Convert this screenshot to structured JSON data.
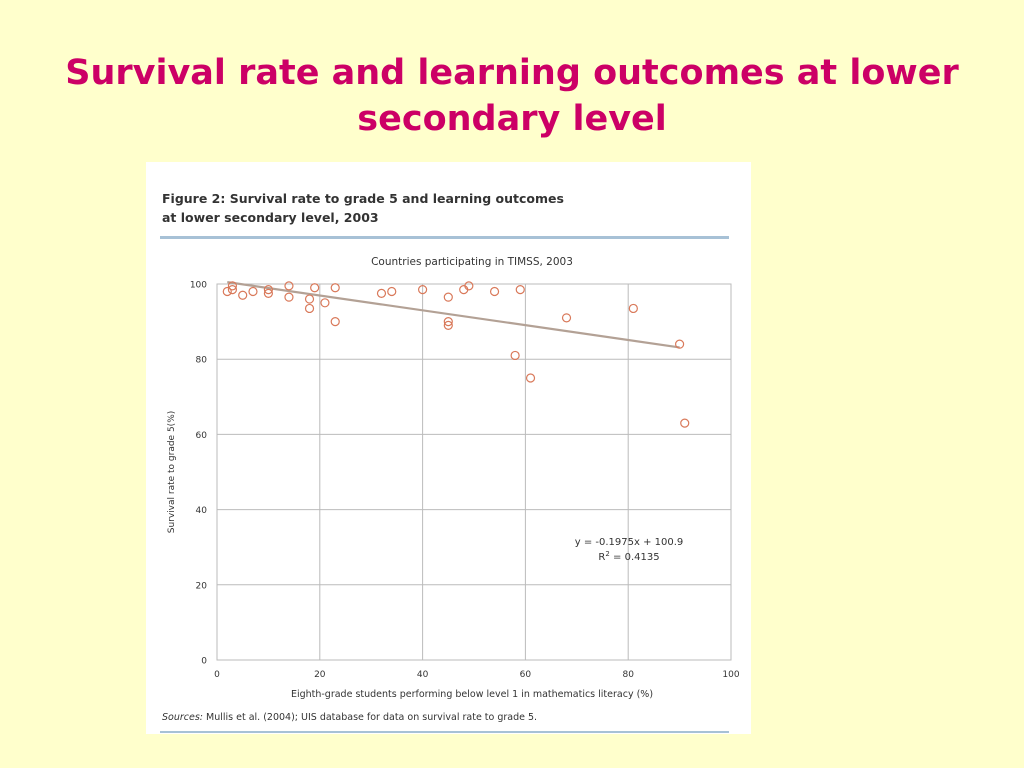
{
  "slide": {
    "title": "Survival rate and learning outcomes at lower secondary level"
  },
  "figure": {
    "caption_line1": "Figure 2: Survival rate to grade 5 and learning outcomes",
    "caption_line2": "at lower secondary level, 2003",
    "sources_label": "Sources:",
    "sources_text": " Mullis et al. (2004); UIS database for data on survival rate to grade 5."
  },
  "colors": {
    "title": "#cc0066",
    "background": "#ffffcc",
    "marker": "#d9795a",
    "trendline": "#b3a195",
    "grid": "#bbbbbb",
    "rule": "#a7c1d6"
  },
  "chart_data": {
    "type": "scatter",
    "title": "Countries participating in TIMSS, 2003",
    "xlabel": "Eighth-grade students performing below level 1 in mathematics literacy (%)",
    "ylabel": "Survival rate to grade 5(%)",
    "xlim": [
      0,
      100
    ],
    "ylim": [
      0,
      100
    ],
    "xticks": [
      0,
      20,
      40,
      60,
      80,
      100
    ],
    "yticks": [
      0,
      20,
      40,
      60,
      80,
      100
    ],
    "grid": true,
    "points": [
      [
        2,
        98
      ],
      [
        3,
        99.5
      ],
      [
        3,
        98.5
      ],
      [
        5,
        97
      ],
      [
        7,
        98
      ],
      [
        10,
        98.5
      ],
      [
        10,
        97.5
      ],
      [
        14,
        99.5
      ],
      [
        14,
        96.5
      ],
      [
        18,
        96
      ],
      [
        18,
        93.5
      ],
      [
        19,
        99
      ],
      [
        21,
        95
      ],
      [
        23,
        99
      ],
      [
        23,
        90
      ],
      [
        32,
        97.5
      ],
      [
        34,
        98
      ],
      [
        40,
        98.5
      ],
      [
        45,
        96.5
      ],
      [
        45,
        90
      ],
      [
        45,
        89
      ],
      [
        48,
        98.5
      ],
      [
        49,
        99.5
      ],
      [
        54,
        98
      ],
      [
        58,
        81
      ],
      [
        59,
        98.5
      ],
      [
        61,
        75
      ],
      [
        68,
        91
      ],
      [
        81,
        93.5
      ],
      [
        90,
        84
      ],
      [
        91,
        63
      ]
    ],
    "trendline": {
      "slope": -0.1975,
      "intercept": 100.9,
      "x_range": [
        2,
        90
      ]
    },
    "annotation_equation": "y = -0.1975x + 100.9",
    "annotation_r2_prefix": "R",
    "annotation_r2_sup": "2",
    "annotation_r2_value": " = 0.4135"
  }
}
